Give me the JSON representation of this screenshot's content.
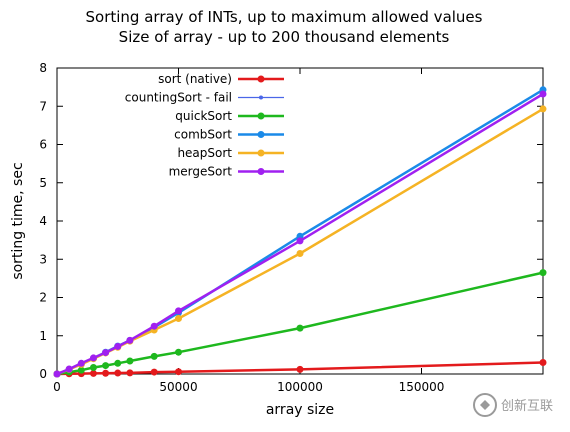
{
  "chart_data": {
    "type": "line",
    "title": "Sorting array of INTs, up to maximum allowed values",
    "subtitle": "Size of array - up to 200 thousand elements",
    "xlabel": "array size",
    "ylabel": "sorting time, sec",
    "xlim": [
      0,
      200000
    ],
    "ylim": [
      0,
      8
    ],
    "xticks": [
      0,
      50000,
      100000,
      150000
    ],
    "yticks": [
      0,
      1,
      2,
      3,
      4,
      5,
      6,
      7,
      8
    ],
    "grid": false,
    "legend_position": "top-left",
    "series": [
      {
        "name": "sort (native)",
        "color": "#e31a1c",
        "x": [
          0,
          5000,
          10000,
          15000,
          20000,
          25000,
          30000,
          40000,
          50000,
          100000,
          200000
        ],
        "values": [
          0,
          0.005,
          0.01,
          0.015,
          0.02,
          0.025,
          0.03,
          0.05,
          0.06,
          0.12,
          0.3
        ]
      },
      {
        "name": "countingSort - fail",
        "color": "#4a66e8",
        "x": [],
        "values": []
      },
      {
        "name": "quickSort",
        "color": "#1eb81e",
        "x": [
          0,
          5000,
          10000,
          15000,
          20000,
          25000,
          30000,
          40000,
          50000,
          100000,
          200000
        ],
        "values": [
          0,
          0.05,
          0.1,
          0.17,
          0.22,
          0.28,
          0.34,
          0.46,
          0.57,
          1.2,
          2.65
        ]
      },
      {
        "name": "combSort",
        "color": "#1a8ae8",
        "x": [
          0,
          5000,
          10000,
          15000,
          20000,
          25000,
          30000,
          40000,
          50000,
          100000,
          200000
        ],
        "values": [
          0,
          0.12,
          0.27,
          0.41,
          0.57,
          0.73,
          0.88,
          1.22,
          1.6,
          3.6,
          7.43
        ]
      },
      {
        "name": "heapSort",
        "color": "#f5b324",
        "x": [
          0,
          5000,
          10000,
          15000,
          20000,
          25000,
          30000,
          40000,
          50000,
          100000,
          200000
        ],
        "values": [
          0,
          0.12,
          0.25,
          0.4,
          0.55,
          0.7,
          0.86,
          1.15,
          1.45,
          3.15,
          6.93
        ]
      },
      {
        "name": "mergeSort",
        "color": "#a020f0",
        "x": [
          0,
          5000,
          10000,
          15000,
          20000,
          25000,
          30000,
          40000,
          50000,
          100000,
          200000
        ],
        "values": [
          0,
          0.13,
          0.28,
          0.42,
          0.56,
          0.72,
          0.88,
          1.25,
          1.65,
          3.48,
          7.32
        ]
      }
    ]
  },
  "watermark": {
    "text": "创新互联",
    "color": "#9a9a9a"
  }
}
